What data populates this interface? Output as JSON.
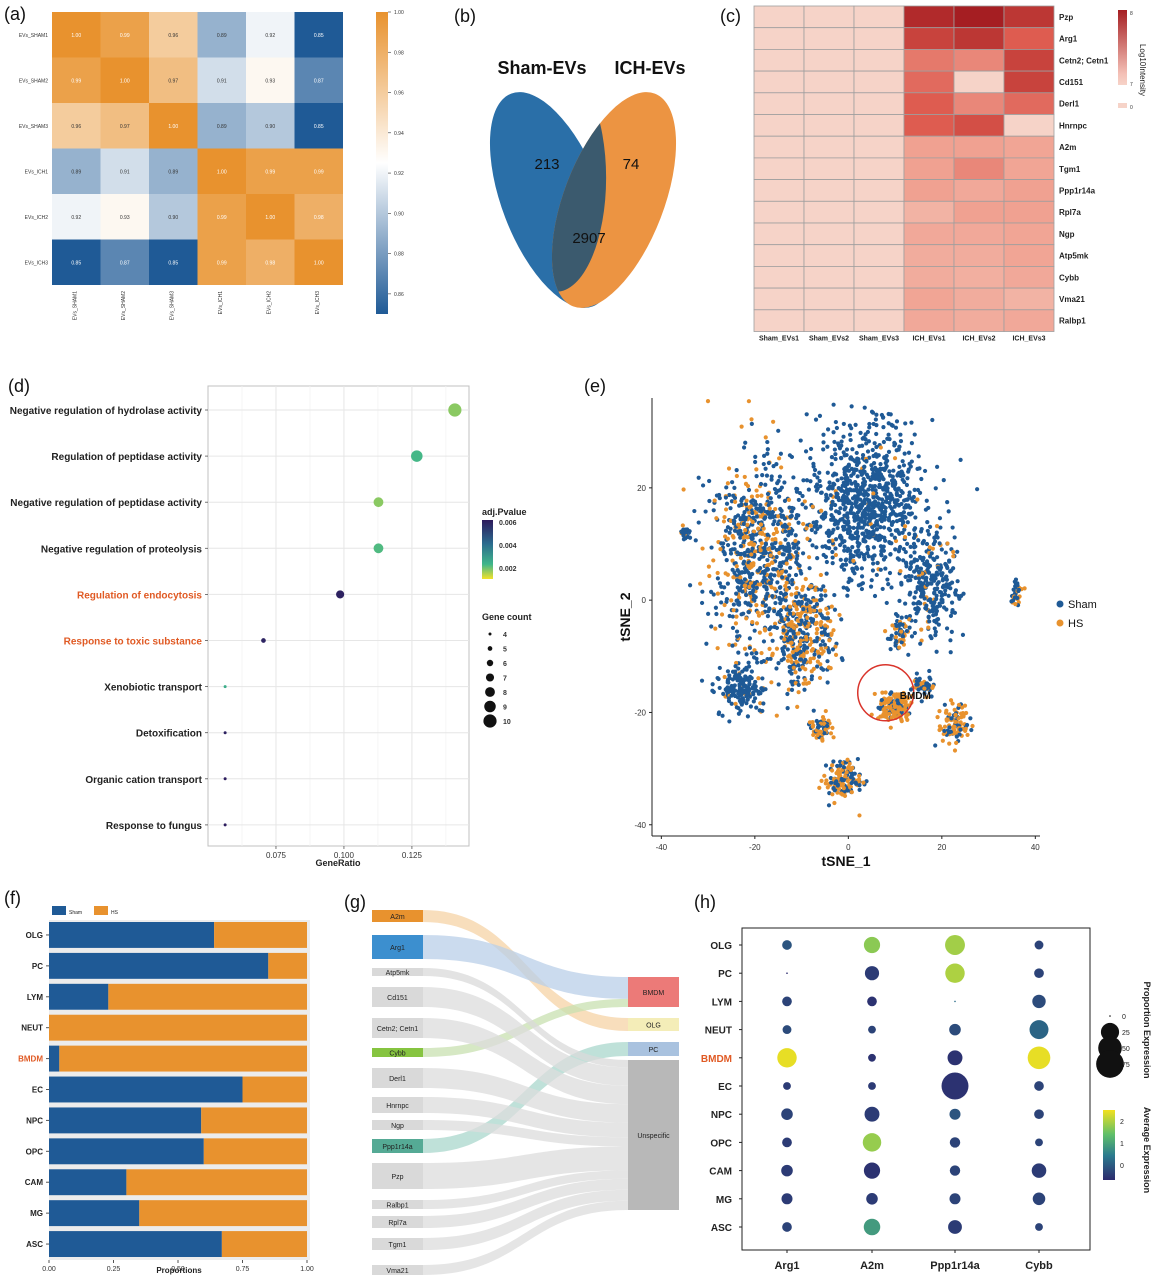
{
  "panel_labels": [
    "(a)",
    "(b)",
    "(c)",
    "(d)",
    "(e)",
    "(f)",
    "(g)",
    "(h)"
  ],
  "colors": {
    "blue": "#1f5a96",
    "orange": "#e8922e",
    "heat_dark": "#a51e22",
    "heat_light": "#f6d3c8",
    "venn_blue": "#2a6fa8",
    "venn_orange": "#ec9442",
    "venn_overlap": "#3b5a6e",
    "highlight": "#e05a24",
    "bmdm_circle": "#d9342b"
  },
  "chart_data": [
    {
      "id": "a",
      "type": "heatmap",
      "title": "",
      "rows": [
        "EVs_SHAM1",
        "EVs_SHAM2",
        "EVs_SHAM3",
        "EVs_ICH1",
        "EVs_ICH2",
        "EVs_ICH3"
      ],
      "cols": [
        "EVs_SHAM1",
        "EVs_SHAM2",
        "EVs_SHAM3",
        "EVs_ICH1",
        "EVs_ICH2",
        "EVs_ICH3"
      ],
      "values": [
        [
          1.0,
          0.99,
          0.96,
          0.89,
          0.92,
          0.85
        ],
        [
          0.99,
          1.0,
          0.97,
          0.91,
          0.93,
          0.87
        ],
        [
          0.96,
          0.97,
          1.0,
          0.89,
          0.9,
          0.85
        ],
        [
          0.89,
          0.91,
          0.89,
          1.0,
          0.99,
          0.99
        ],
        [
          0.92,
          0.93,
          0.9,
          0.99,
          1.0,
          0.98
        ],
        [
          0.85,
          0.87,
          0.85,
          0.99,
          0.98,
          1.0
        ]
      ],
      "labels": [
        [
          "1.00",
          "0.99",
          "0.96",
          "0.89",
          "0.92",
          "0.85"
        ],
        [
          "0.99",
          "1.00",
          "0.97",
          "0.91",
          "0.93",
          "0.87"
        ],
        [
          "0.96",
          "0.97",
          "1.00",
          "0.89",
          "0.90",
          "0.85"
        ],
        [
          "0.89",
          "0.91",
          "0.89",
          "1.00",
          "0.99",
          "0.99"
        ],
        [
          "0.92",
          "0.93",
          "0.90",
          "0.99",
          "1.00",
          "0.98"
        ],
        [
          "0.85",
          "0.87",
          "0.85",
          "0.99",
          "0.98",
          "1.00"
        ]
      ],
      "colorbar_range": [
        0.85,
        1.0
      ],
      "colorbar_ticks": [
        "1.00",
        "0.98",
        "0.96",
        "0.94",
        "0.92",
        "0.90",
        "0.88",
        "0.86"
      ]
    },
    {
      "id": "b",
      "type": "venn",
      "sets": [
        "Sham-EVs",
        "ICH-EVs"
      ],
      "only_a": "213",
      "only_b": "74",
      "both": "2907"
    },
    {
      "id": "c",
      "type": "heatmap",
      "rows": [
        "Pzp",
        "Arg1",
        "Cetn2; Cetn1",
        "Cd151",
        "Derl1",
        "Hnrnpc",
        "A2m",
        "Tgm1",
        "Ppp1r14a",
        "Rpl7a",
        "Ngp",
        "Atp5mk",
        "Cybb",
        "Vma21",
        "Ralbp1"
      ],
      "cols": [
        "Sham_EVs1",
        "Sham_EVs2",
        "Sham_EVs3",
        "ICH_EVs1",
        "ICH_EVs2",
        "ICH_EVs3"
      ],
      "values": [
        [
          0,
          0,
          0,
          8.6,
          8.7,
          8.5
        ],
        [
          0,
          0,
          0,
          8.4,
          8.5,
          8.2
        ],
        [
          0,
          0,
          0,
          8.0,
          7.9,
          8.4
        ],
        [
          0,
          0,
          0,
          8.1,
          0,
          8.4
        ],
        [
          0,
          0,
          0,
          8.2,
          7.9,
          8.1
        ],
        [
          0,
          0,
          0,
          8.2,
          8.3,
          0
        ],
        [
          0,
          0,
          0,
          7.7,
          7.7,
          7.6
        ],
        [
          0,
          0,
          0,
          7.7,
          7.9,
          7.6
        ],
        [
          0,
          0,
          0,
          7.7,
          7.5,
          7.7
        ],
        [
          0,
          0,
          0,
          7.2,
          7.7,
          7.7
        ],
        [
          0,
          0,
          0,
          7.5,
          7.5,
          7.6
        ],
        [
          0,
          0,
          0,
          7.4,
          7.4,
          7.6
        ],
        [
          0,
          0,
          0,
          7.4,
          7.3,
          7.5
        ],
        [
          0,
          0,
          0,
          7.6,
          7.4,
          7.2
        ],
        [
          0,
          0,
          0,
          7.5,
          7.4,
          7.5
        ]
      ],
      "legend_title": "Log10Intensity",
      "legend_ticks": [
        "8",
        "7",
        "0"
      ]
    },
    {
      "id": "d",
      "type": "scatter",
      "xlabel": "GeneRatio",
      "xticks": [
        "0.075",
        "0.100",
        "0.125"
      ],
      "xtick_values": [
        0.075,
        0.1,
        0.125
      ],
      "xlim": [
        0.05,
        0.146
      ],
      "terms": [
        "Negative regulation of hydrolase activity",
        "Regulation of peptidase activity",
        "Negative regulation of peptidase activity",
        "Negative regulation of proteolysis",
        "Regulation of endocytosis",
        "Response to toxic substance",
        "Xenobiotic transport",
        "Detoxification",
        "Organic cation transport",
        "Response to fungus"
      ],
      "highlight": [
        false,
        false,
        false,
        false,
        true,
        true,
        false,
        false,
        false,
        false
      ],
      "gene_ratio": [
        0.1408,
        0.1268,
        0.1127,
        0.1127,
        0.0986,
        0.0704,
        0.0563,
        0.0563,
        0.0563,
        0.0563
      ],
      "gene_count": [
        10,
        9,
        8,
        8,
        7,
        5,
        4,
        4,
        4,
        4
      ],
      "adj_pvalue": [
        0.0009,
        0.0015,
        0.0009,
        0.0014,
        0.006,
        0.0059,
        0.0018,
        0.006,
        0.0061,
        0.0061
      ],
      "color_legend_title": "adj.Pvalue",
      "color_legend_ticks": [
        "0.006",
        "0.004",
        "0.002"
      ],
      "size_legend_title": "Gene count",
      "size_legend_values": [
        "4",
        "5",
        "6",
        "7",
        "8",
        "9",
        "10"
      ]
    },
    {
      "id": "e",
      "type": "scatter",
      "xlabel": "tSNE_1",
      "ylabel": "tSNE_2",
      "xticks": [
        "-40",
        "-20",
        "0",
        "20",
        "40"
      ],
      "yticks": [
        "20",
        "0",
        "-20",
        "-40"
      ],
      "xlim": [
        -42,
        41
      ],
      "ylim": [
        -42,
        36
      ],
      "series": [
        {
          "name": "Sham"
        },
        {
          "name": "HS"
        }
      ],
      "annotation": "BMDM",
      "annotation_center": [
        8,
        -16.5
      ]
    },
    {
      "id": "f",
      "type": "bar",
      "orientation": "horizontal-stacked",
      "categories": [
        "OLG",
        "PC",
        "LYM",
        "NEUT",
        "BMDM",
        "EC",
        "NPC",
        "OPC",
        "CAM",
        "MG",
        "ASC"
      ],
      "highlight": "BMDM",
      "series": [
        {
          "name": "Sham",
          "values": [
            0.64,
            0.85,
            0.23,
            0.0,
            0.04,
            0.75,
            0.59,
            0.6,
            0.3,
            0.35,
            0.67
          ]
        },
        {
          "name": "HS",
          "values": [
            0.36,
            0.15,
            0.77,
            1.0,
            0.96,
            0.25,
            0.41,
            0.4,
            0.7,
            0.65,
            0.33
          ]
        }
      ],
      "xlabel": "Proportions",
      "xticks": [
        "0.00",
        "0.25",
        "0.50",
        "0.75",
        "1.00"
      ],
      "xlim": [
        0,
        1
      ]
    },
    {
      "id": "g",
      "type": "sankey",
      "left": [
        "A2m",
        "Arg1",
        "Atp5mk",
        "Cd151",
        "Cetn2; Cetn1",
        "Cybb",
        "Derl1",
        "Hnrnpc",
        "Ngp",
        "Ppp1r14a",
        "Pzp",
        "Ralbp1",
        "Rpl7a",
        "Tgm1",
        "Vma21"
      ],
      "left_weight": [
        1,
        2,
        1,
        2,
        2,
        1,
        2,
        1,
        1,
        1,
        2,
        1,
        1,
        1,
        1
      ],
      "left_colors": [
        "#e8922e",
        "#3c8fcf",
        "#d9d9d9",
        "#d9d9d9",
        "#d9d9d9",
        "#86c440",
        "#d9d9d9",
        "#d9d9d9",
        "#d9d9d9",
        "#55aa95",
        "#d9d9d9",
        "#d9d9d9",
        "#d9d9d9",
        "#d9d9d9",
        "#d9d9d9"
      ],
      "right": [
        "BMDM",
        "OLG",
        "PC",
        "Unspecific"
      ],
      "right_colors": [
        "#ec7a78",
        "#f4edb8",
        "#a9c2df",
        "#b8b8b8"
      ],
      "links": [
        [
          0,
          1
        ],
        [
          1,
          0
        ],
        [
          5,
          0
        ],
        [
          9,
          2
        ],
        [
          2,
          3
        ],
        [
          3,
          3
        ],
        [
          4,
          3
        ],
        [
          6,
          3
        ],
        [
          7,
          3
        ],
        [
          8,
          3
        ],
        [
          10,
          3
        ],
        [
          11,
          3
        ],
        [
          12,
          3
        ],
        [
          13,
          3
        ],
        [
          14,
          3
        ]
      ]
    },
    {
      "id": "h",
      "type": "scatter",
      "subtype": "dotplot",
      "genes": [
        "Arg1",
        "A2m",
        "Ppp1r14a",
        "Cybb"
      ],
      "cells": [
        "OLG",
        "PC",
        "LYM",
        "NEUT",
        "BMDM",
        "EC",
        "NPC",
        "OPC",
        "CAM",
        "MG",
        "ASC"
      ],
      "highlight": "BMDM",
      "pct": [
        [
          3,
          18,
          32,
          2
        ],
        [
          0.5,
          12,
          30,
          3
        ],
        [
          3,
          3,
          0.5,
          10
        ],
        [
          2,
          1,
          6,
          28
        ],
        [
          30,
          1,
          14,
          45
        ],
        [
          1,
          1,
          70,
          3
        ],
        [
          6,
          14,
          5,
          3
        ],
        [
          3,
          26,
          4,
          1
        ],
        [
          6,
          18,
          4,
          13
        ],
        [
          5,
          6,
          5,
          8
        ],
        [
          3,
          19,
          11,
          1
        ]
      ],
      "avg": [
        [
          -0.3,
          1.5,
          1.7,
          -0.5
        ],
        [
          -0.8,
          -0.6,
          1.8,
          -0.5
        ],
        [
          -0.5,
          -0.7,
          0.0,
          -0.4
        ],
        [
          -0.4,
          -0.5,
          -0.4,
          -0.1
        ],
        [
          2.3,
          -0.7,
          -0.7,
          2.3
        ],
        [
          -0.6,
          -0.6,
          -0.7,
          -0.5
        ],
        [
          -0.5,
          -0.6,
          -0.3,
          -0.5
        ],
        [
          -0.6,
          1.6,
          -0.5,
          -0.5
        ],
        [
          -0.6,
          -0.7,
          -0.5,
          -0.6
        ],
        [
          -0.6,
          -0.6,
          -0.5,
          -0.5
        ],
        [
          -0.5,
          0.6,
          -0.6,
          -0.5
        ]
      ],
      "size_legend_title": "Proportion Expression",
      "size_legend_values": [
        "0",
        "25",
        "50",
        "75"
      ],
      "color_legend_title": "Average Expression",
      "color_legend_ticks": [
        "2",
        "1",
        "0"
      ]
    }
  ]
}
